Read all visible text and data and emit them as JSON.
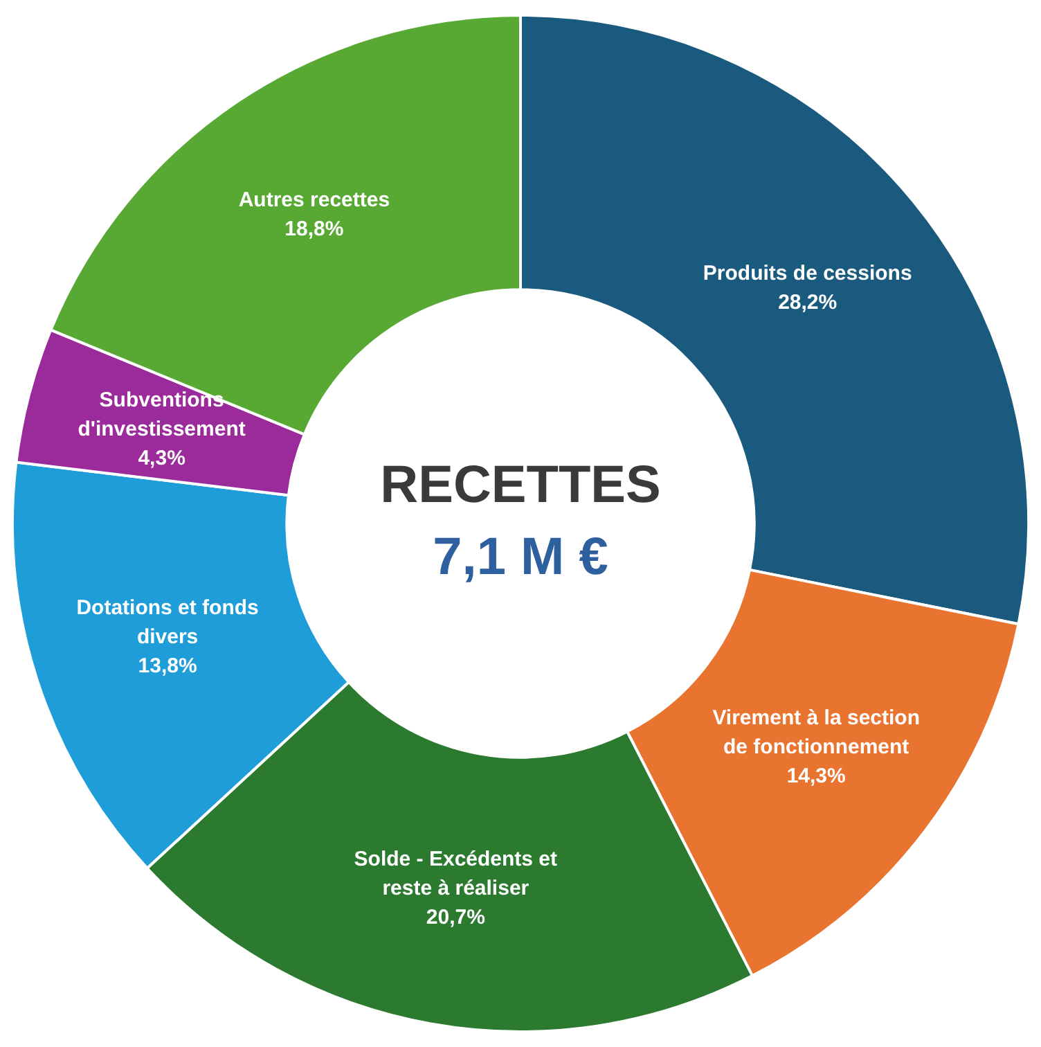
{
  "chart_data": {
    "type": "donut",
    "title": "RECETTES",
    "subtitle": "7,1 M €",
    "categories": [
      "Produits de cessions",
      "Virement à la section de fonctionnement",
      "Solde - Excédents et reste à réaliser",
      "Dotations et fonds divers",
      "Subventions d'investissement",
      "Autres recettes"
    ],
    "values": [
      28.2,
      14.3,
      20.7,
      13.8,
      4.3,
      18.8
    ],
    "value_labels": [
      "28,2%",
      "14,3%",
      "20,7%",
      "13,8%",
      "4,3%",
      "18,8%"
    ],
    "colors": [
      "#1b5a7f",
      "#e8742f",
      "#2b7a2f",
      "#1e9dd8",
      "#9b2b9a",
      "#58a834"
    ],
    "legend": false
  }
}
